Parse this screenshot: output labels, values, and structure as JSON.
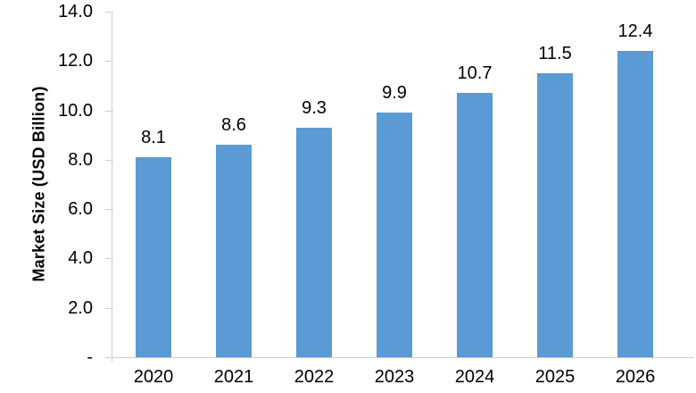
{
  "chart_data": {
    "type": "bar",
    "title": "",
    "categories": [
      "2020",
      "2021",
      "2022",
      "2023",
      "2024",
      "2025",
      "2026"
    ],
    "values": [
      8.1,
      8.6,
      9.3,
      9.9,
      10.7,
      11.5,
      12.4
    ],
    "data_labels": [
      "8.1",
      "8.6",
      "9.3",
      "9.9",
      "10.7",
      "11.5",
      "12.4"
    ],
    "xlabel": "",
    "ylabel": "Market Size (USD Billion)",
    "ylim": [
      0,
      14
    ],
    "ytick_interval": 2,
    "ytick_labels": [
      "-",
      "2.0",
      "4.0",
      "6.0",
      "8.0",
      "10.0",
      "12.0",
      "14.0"
    ],
    "grid": false,
    "legend": false,
    "colors": {
      "bar": "#5b9bd5",
      "axis": "#d0cece",
      "text": "#000000",
      "background": "#ffffff"
    }
  }
}
